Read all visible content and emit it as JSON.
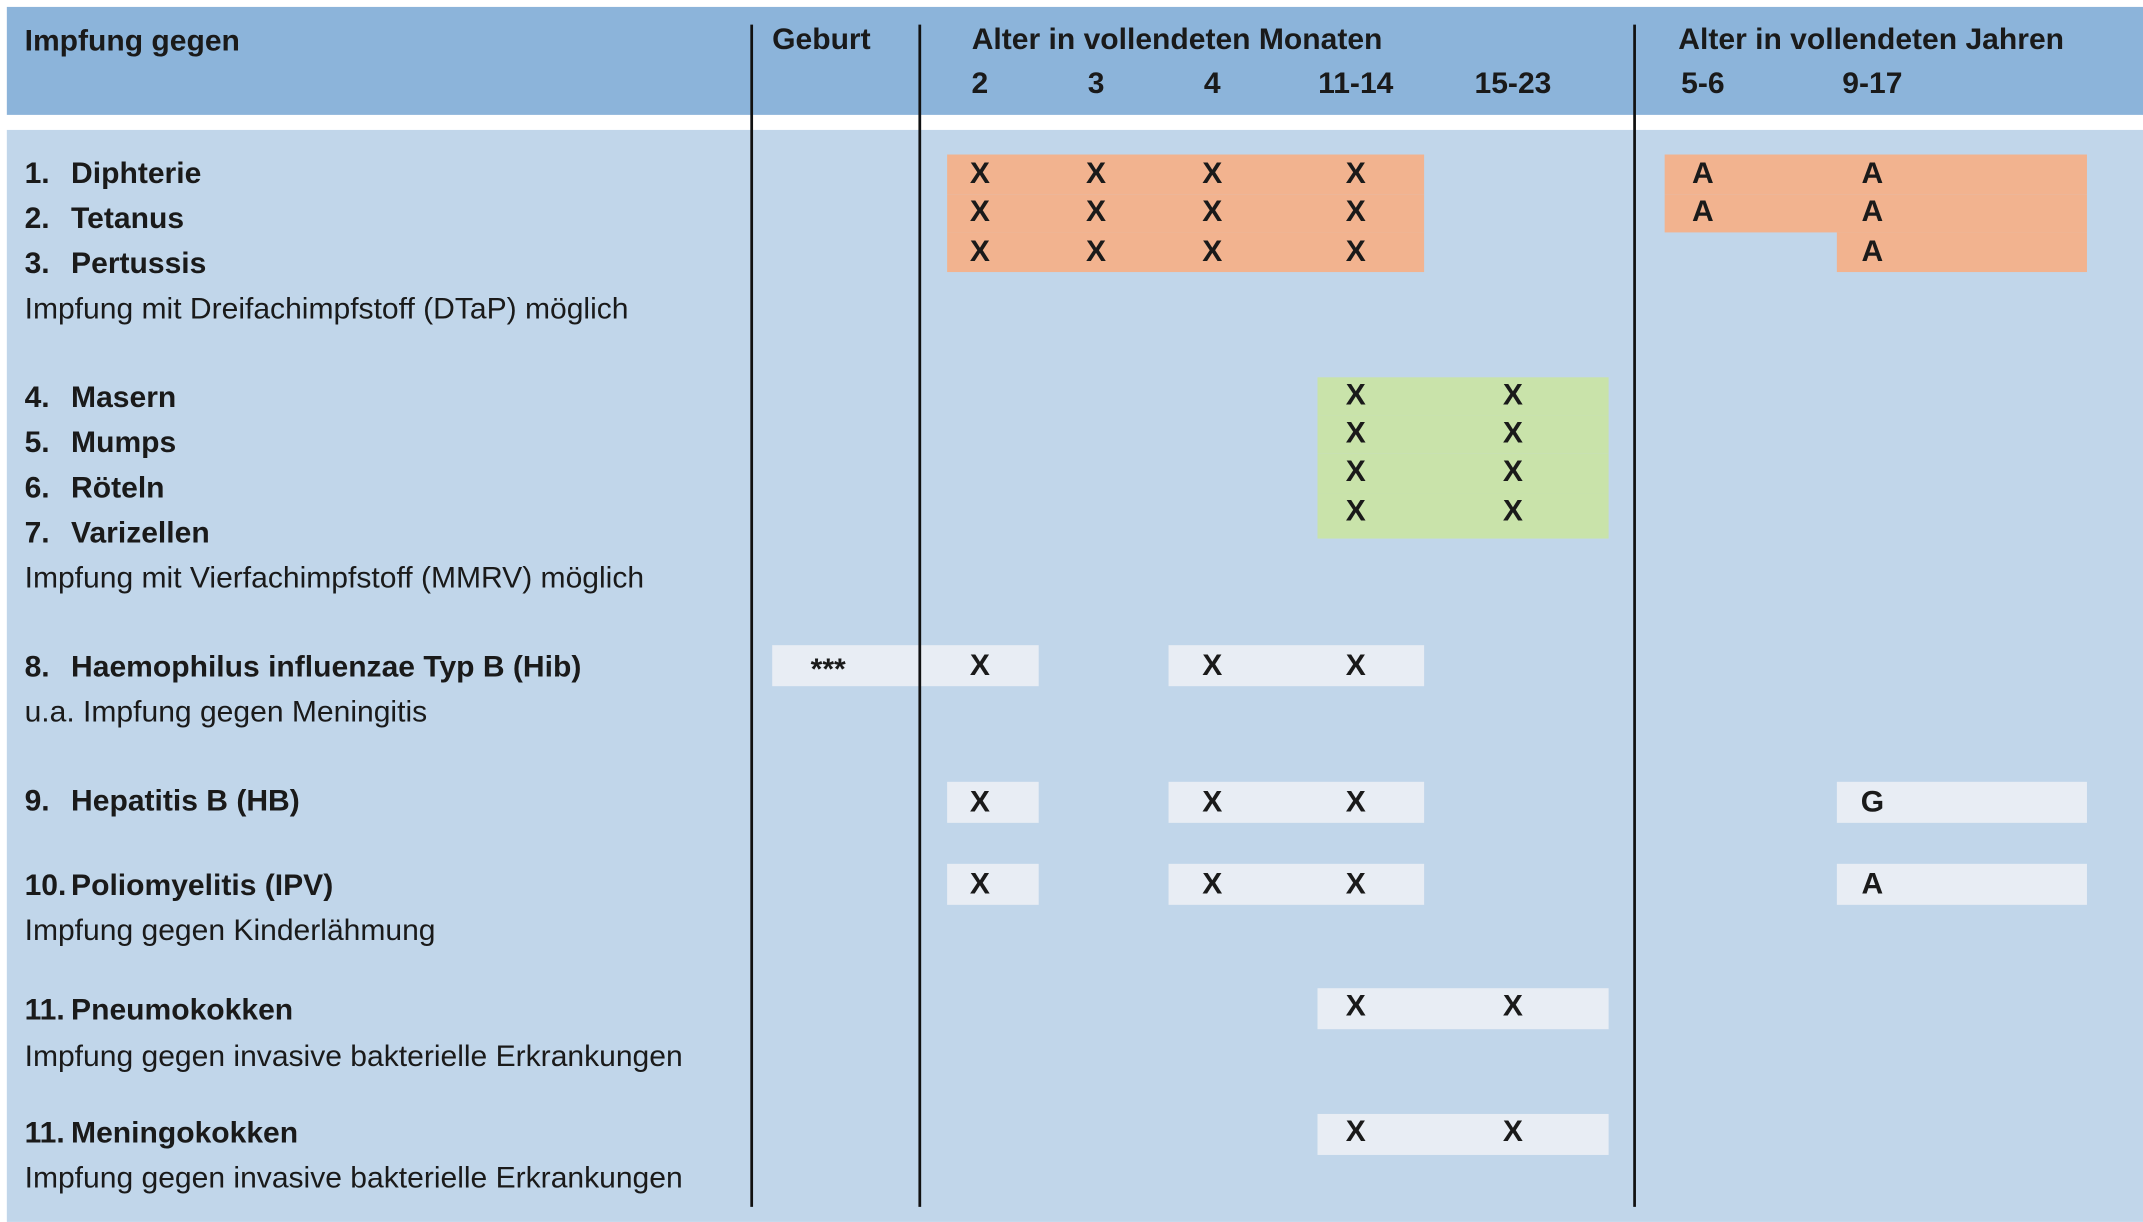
{
  "header": {
    "title": "Impfung gegen",
    "birth": "Geburt",
    "months_title": "Alter in vollendeten Monaten",
    "months": [
      "2",
      "3",
      "4",
      "11-14",
      "15-23"
    ],
    "years_title": "Alter in vollendeten Jahren",
    "years": [
      "5-6",
      "9-17"
    ]
  },
  "groups": [
    {
      "color": "#f2b38f",
      "rows": [
        {
          "num": "1.",
          "name": "Diphterie",
          "cells": [
            null,
            "X",
            "X",
            "X",
            "X",
            null,
            "A",
            "A"
          ]
        },
        {
          "num": "2.",
          "name": "Tetanus",
          "cells": [
            null,
            "X",
            "X",
            "X",
            "X",
            null,
            "A",
            "A"
          ]
        },
        {
          "num": "3.",
          "name": "Pertussis",
          "cells": [
            null,
            "X",
            "X",
            "X",
            "X",
            null,
            null,
            "A"
          ]
        }
      ],
      "note": "Impfung mit Dreifachimpfstoff (DTaP) möglich"
    },
    {
      "color": "#c9e3aa",
      "rows": [
        {
          "num": "4.",
          "name": "Masern",
          "cells": [
            null,
            null,
            null,
            null,
            "X",
            "X",
            null,
            null
          ]
        },
        {
          "num": "5.",
          "name": "Mumps",
          "cells": [
            null,
            null,
            null,
            null,
            "X",
            "X",
            null,
            null
          ]
        },
        {
          "num": "6.",
          "name": "Röteln",
          "cells": [
            null,
            null,
            null,
            null,
            "X",
            "X",
            null,
            null
          ]
        },
        {
          "num": "7.",
          "name": "Varizellen",
          "cells": [
            null,
            null,
            null,
            null,
            "X",
            "X",
            null,
            null
          ]
        }
      ],
      "note": "Impfung mit Vierfachimpfstoff (MMRV) möglich"
    },
    {
      "color": "#e8edf4",
      "rows": [
        {
          "num": "8.",
          "name": "Haemophilus influenzae Typ B (Hib)",
          "cells": [
            "***",
            "X",
            null,
            "X",
            "X",
            null,
            null,
            null
          ]
        }
      ],
      "note": "u.a. Impfung gegen Meningitis"
    },
    {
      "color": "#e8edf4",
      "rows": [
        {
          "num": "9.",
          "name": "Hepatitis B (HB)",
          "cells": [
            null,
            "X",
            null,
            "X",
            "X",
            null,
            null,
            "G"
          ]
        }
      ]
    },
    {
      "color": "#e8edf4",
      "rows": [
        {
          "num": "10.",
          "name": "Poliomyelitis (IPV)",
          "cells": [
            null,
            "X",
            null,
            "X",
            "X",
            null,
            null,
            "A"
          ]
        }
      ],
      "note": "Impfung gegen Kinderlähmung"
    },
    {
      "color": "#e8edf4",
      "rows": [
        {
          "num": "11.",
          "name": "Pneumokokken",
          "cells": [
            null,
            null,
            null,
            null,
            "X",
            "X",
            null,
            null
          ]
        }
      ],
      "note": "Impfung gegen invasive bakterielle Erkrankungen"
    },
    {
      "color": "#e8edf4",
      "rows": [
        {
          "num": "11.",
          "name": "Meningokokken",
          "cells": [
            null,
            null,
            null,
            null,
            "X",
            "X",
            null,
            null
          ]
        }
      ],
      "note": "Impfung gegen invasive bakterielle Erkrankungen"
    }
  ]
}
